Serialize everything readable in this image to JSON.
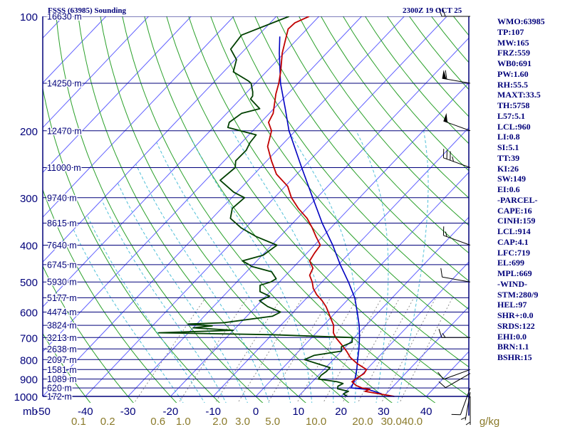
{
  "header": {
    "station": "FSSS (63985) Sounding",
    "datetime": "2300Z 19 OCT 25"
  },
  "indices": [
    "WMO:63985",
    "TP:107",
    "MW:165",
    "FRZ:559",
    "WB0:691",
    "PW:1.60",
    "RH:55.5",
    "MAXT:33.5",
    "TH:5758",
    "L57:5.1",
    "LCL:960",
    "LI:0.8",
    "SI:5.1",
    "TT:39",
    "KI:26",
    "SW:149",
    "EI:0.6",
    "-PARCEL-",
    "CAPE:16",
    "CINH:159",
    "LCL:914",
    "CAP:4.1",
    "LFC:719",
    "EL:699",
    "MPL:669",
    "-WIND-",
    "STM:280/9",
    "HEL:97",
    "SHR+:0.0",
    "SRDS:122",
    "EHI:0.0",
    "BRN:1.1",
    "BSHR:15"
  ],
  "colors": {
    "frame": "#00007a",
    "isobar": "#00007a",
    "isotherm": "#6060ff",
    "dry_adiabat": "#2aa02a",
    "moist_adiabat": "#50c0d8",
    "mixing_ratio": "#909090",
    "temperature": "#c00000",
    "dewpoint": "#004000",
    "parcel": "#0000c0",
    "mixlabel": "#8a7a2a"
  },
  "chart_data": {
    "type": "skew-t",
    "title": "FSSS (63985) Sounding",
    "pressure_unit": "mb",
    "pressure_range": [
      1000,
      100
    ],
    "temperature_range_at_1000mb": [
      -50,
      50
    ],
    "pressure_ticks": [
      100,
      200,
      300,
      400,
      500,
      600,
      700,
      800,
      900,
      1000
    ],
    "temperature_ticks": [
      "-50",
      "-40",
      "-30",
      "-20",
      "-10",
      "0",
      "10",
      "20",
      "30",
      "40"
    ],
    "mixing_ratio_unit": "g/kg",
    "mixing_ratio_ticks": [
      "0.1",
      "0.2",
      "0.6",
      "1.0",
      "2.0",
      "3.0",
      "5.0",
      "10.0",
      "20.0",
      "30.0",
      "40.0"
    ],
    "isobars": [
      {
        "p": 100,
        "height_label": "16630 m"
      },
      {
        "p": 150,
        "height_label": "14250 m"
      },
      {
        "p": 200,
        "height_label": "12470 m"
      },
      {
        "p": 250,
        "height_label": "11000 m"
      },
      {
        "p": 300,
        "height_label": "9740 m"
      },
      {
        "p": 350,
        "height_label": "8615 m"
      },
      {
        "p": 400,
        "height_label": "7640 m"
      },
      {
        "p": 450,
        "height_label": "6745 m"
      },
      {
        "p": 500,
        "height_label": "5930 m"
      },
      {
        "p": 550,
        "height_label": "5177 m"
      },
      {
        "p": 600,
        "height_label": "4474 m"
      },
      {
        "p": 650,
        "height_label": "3824 m"
      },
      {
        "p": 700,
        "height_label": "3213 m"
      },
      {
        "p": 750,
        "height_label": "2638 m"
      },
      {
        "p": 800,
        "height_label": "2097 m"
      },
      {
        "p": 850,
        "height_label": "1581 m"
      },
      {
        "p": 900,
        "height_label": "1089 m"
      },
      {
        "p": 950,
        "height_label": "620 m"
      },
      {
        "p": 1000,
        "height_label": "172 m"
      }
    ],
    "series": [
      {
        "name": "temperature",
        "points": [
          [
            1000,
            32.5
          ],
          [
            985,
            28.5
          ],
          [
            970,
            24.5
          ],
          [
            958,
            25.2
          ],
          [
            950,
            23.0
          ],
          [
            935,
            21.0
          ],
          [
            915,
            19.3
          ],
          [
            890,
            19.8
          ],
          [
            870,
            20.3
          ],
          [
            850,
            20.0
          ],
          [
            820,
            16.5
          ],
          [
            790,
            13.5
          ],
          [
            760,
            11.2
          ],
          [
            730,
            8.5
          ],
          [
            700,
            5.6
          ],
          [
            680,
            4.0
          ],
          [
            650,
            2.4
          ],
          [
            620,
            -0.1
          ],
          [
            600,
            -1.8
          ],
          [
            580,
            -3.6
          ],
          [
            560,
            -5.8
          ],
          [
            540,
            -8.4
          ],
          [
            520,
            -10.6
          ],
          [
            500,
            -12.3
          ],
          [
            480,
            -14.4
          ],
          [
            460,
            -15.2
          ],
          [
            440,
            -17.6
          ],
          [
            420,
            -18.2
          ],
          [
            400,
            -18.6
          ],
          [
            380,
            -21.5
          ],
          [
            360,
            -24.4
          ],
          [
            340,
            -27.7
          ],
          [
            320,
            -32.0
          ],
          [
            300,
            -36.0
          ],
          [
            280,
            -39.4
          ],
          [
            260,
            -44.8
          ],
          [
            240,
            -48.9
          ],
          [
            220,
            -53.0
          ],
          [
            200,
            -55.6
          ],
          [
            190,
            -58.2
          ],
          [
            180,
            -59.1
          ],
          [
            160,
            -62.8
          ],
          [
            150,
            -64.5
          ],
          [
            140,
            -66.6
          ],
          [
            125,
            -70.4
          ],
          [
            115,
            -72.7
          ],
          [
            108,
            -74.4
          ],
          [
            104,
            -74.2
          ],
          [
            100,
            -72.3
          ]
        ]
      },
      {
        "name": "dewpoint",
        "points": [
          [
            1000,
            21.5
          ],
          [
            985,
            20.0
          ],
          [
            970,
            20.6
          ],
          [
            955,
            17.5
          ],
          [
            940,
            17.0
          ],
          [
            925,
            17.6
          ],
          [
            915,
            15.8
          ],
          [
            900,
            10.8
          ],
          [
            880,
            10.6
          ],
          [
            860,
            11.0
          ],
          [
            840,
            11.0
          ],
          [
            800,
            3.2
          ],
          [
            780,
            4.5
          ],
          [
            760,
            10.0
          ],
          [
            740,
            9.0
          ],
          [
            720,
            10.5
          ],
          [
            700,
            9.5
          ],
          [
            688,
            -10.0
          ],
          [
            680,
            -37.0
          ],
          [
            670,
            -20.0
          ],
          [
            660,
            -30.0
          ],
          [
            652,
            -26.0
          ],
          [
            645,
            -32.0
          ],
          [
            640,
            -24.0
          ],
          [
            630,
            -20.0
          ],
          [
            615,
            -14.0
          ],
          [
            600,
            -13.0
          ],
          [
            580,
            -17.3
          ],
          [
            560,
            -20.5
          ],
          [
            545,
            -19.1
          ],
          [
            530,
            -22.4
          ],
          [
            510,
            -23.8
          ],
          [
            500,
            -22.0
          ],
          [
            490,
            -21.5
          ],
          [
            470,
            -24.1
          ],
          [
            460,
            -28.0
          ],
          [
            455,
            -30.0
          ],
          [
            450,
            -31.0
          ],
          [
            440,
            -33.4
          ],
          [
            425,
            -29.8
          ],
          [
            400,
            -28.8
          ],
          [
            380,
            -35.5
          ],
          [
            360,
            -41.1
          ],
          [
            340,
            -45.7
          ],
          [
            320,
            -47.5
          ],
          [
            300,
            -47.0
          ],
          [
            290,
            -50.8
          ],
          [
            270,
            -56.6
          ],
          [
            250,
            -55.9
          ],
          [
            240,
            -57.3
          ],
          [
            225,
            -57.2
          ],
          [
            215,
            -58.0
          ],
          [
            205,
            -58.3
          ],
          [
            196,
            -66.6
          ],
          [
            190,
            -67.4
          ],
          [
            180,
            -66.5
          ],
          [
            175,
            -63.3
          ],
          [
            165,
            -67.6
          ],
          [
            162,
            -67.8
          ],
          [
            158,
            -68.7
          ],
          [
            150,
            -71.0
          ],
          [
            148,
            -72.1
          ],
          [
            140,
            -77.7
          ],
          [
            130,
            -79.7
          ],
          [
            122,
            -83.4
          ],
          [
            112,
            -84.0
          ],
          [
            100,
            -77.0
          ]
        ]
      },
      {
        "name": "parcel",
        "points": [
          [
            985,
            29.0
          ],
          [
            975,
            27.5
          ],
          [
            960,
            25.0
          ],
          [
            955,
            23.0
          ],
          [
            950,
            20.5
          ],
          [
            900,
            19.4
          ],
          [
            850,
            17.7
          ],
          [
            800,
            15.7
          ],
          [
            750,
            13.6
          ],
          [
            700,
            11.2
          ],
          [
            650,
            8.4
          ],
          [
            600,
            5.0
          ],
          [
            550,
            1.2
          ],
          [
            500,
            -3.8
          ],
          [
            450,
            -9.6
          ],
          [
            400,
            -15.7
          ],
          [
            350,
            -23.1
          ],
          [
            300,
            -31.0
          ],
          [
            250,
            -40.3
          ],
          [
            200,
            -51.5
          ],
          [
            175,
            -57.3
          ],
          [
            150,
            -64.1
          ],
          [
            125,
            -71.1
          ],
          [
            113,
            -74.7
          ]
        ]
      }
    ],
    "wind_barbs": [
      {
        "p": 1000,
        "dir": 180,
        "spd": 5
      },
      {
        "p": 975,
        "dir": 190,
        "spd": 5
      },
      {
        "p": 950,
        "dir": 200,
        "spd": 10
      },
      {
        "p": 870,
        "dir": 240,
        "spd": 10
      },
      {
        "p": 850,
        "dir": 250,
        "spd": 10
      },
      {
        "p": 700,
        "dir": 270,
        "spd": 15
      },
      {
        "p": 500,
        "dir": 280,
        "spd": 10
      },
      {
        "p": 400,
        "dir": 290,
        "spd": 15
      },
      {
        "p": 250,
        "dir": 290,
        "spd": 35
      },
      {
        "p": 200,
        "dir": 290,
        "spd": 50
      },
      {
        "p": 150,
        "dir": 280,
        "spd": 60
      },
      {
        "p": 100,
        "dir": 270,
        "spd": 20
      }
    ]
  }
}
